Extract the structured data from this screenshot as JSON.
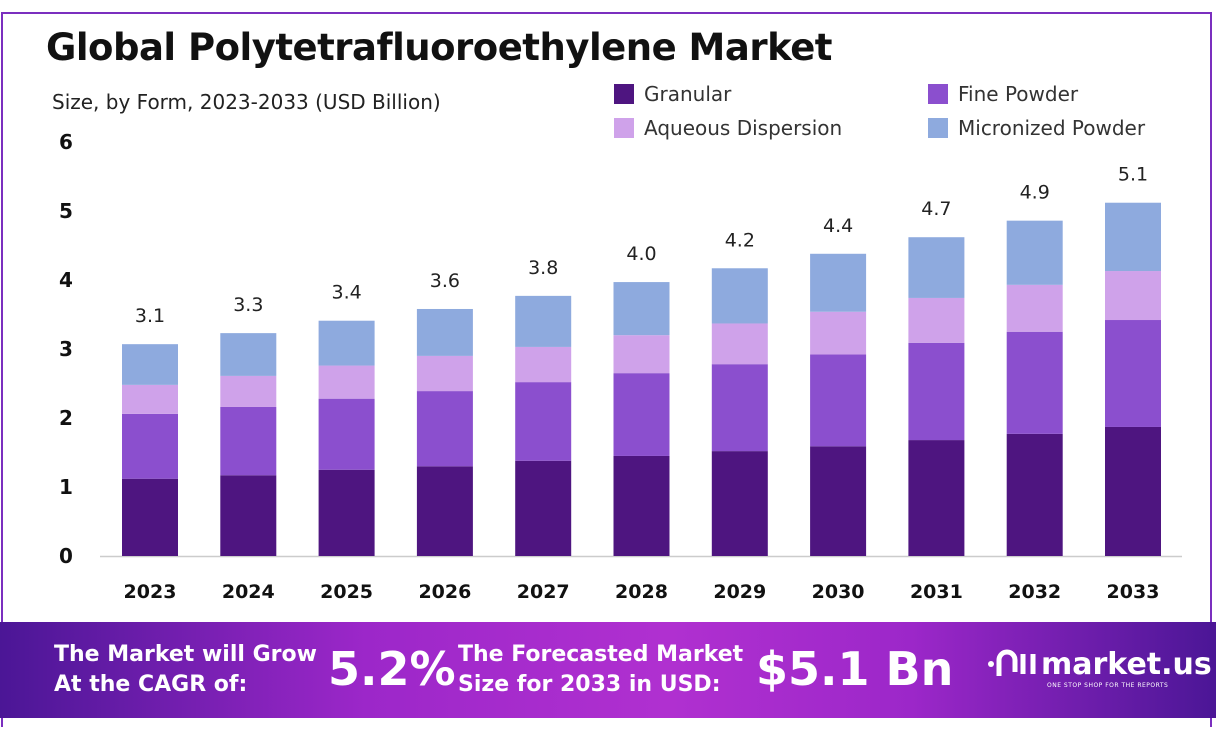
{
  "chart_data": {
    "type": "bar",
    "stacked": true,
    "title": "Global Polytetrafluoroethylene Market",
    "subtitle": "Size, by Form, 2023-2033 (USD Billion)",
    "categories": [
      "2023",
      "2024",
      "2025",
      "2026",
      "2027",
      "2028",
      "2029",
      "2030",
      "2031",
      "2032",
      "2033"
    ],
    "series": [
      {
        "name": "Granular",
        "color": "#4e1580",
        "values": [
          1.12,
          1.17,
          1.25,
          1.3,
          1.38,
          1.45,
          1.52,
          1.59,
          1.68,
          1.77,
          1.87
        ]
      },
      {
        "name": "Fine Powder",
        "color": "#8b4fce",
        "values": [
          0.94,
          0.99,
          1.03,
          1.09,
          1.14,
          1.2,
          1.26,
          1.33,
          1.41,
          1.48,
          1.55
        ]
      },
      {
        "name": "Aqueous Dispersion",
        "color": "#cfa2ea",
        "values": [
          0.42,
          0.45,
          0.48,
          0.51,
          0.51,
          0.55,
          0.59,
          0.62,
          0.65,
          0.68,
          0.71
        ]
      },
      {
        "name": "Micronized Powder",
        "color": "#8eaade",
        "values": [
          0.59,
          0.62,
          0.65,
          0.68,
          0.74,
          0.77,
          0.8,
          0.84,
          0.88,
          0.93,
          0.99
        ]
      }
    ],
    "totals": [
      "3.1",
      "3.3",
      "3.4",
      "3.6",
      "3.8",
      "4.0",
      "4.2",
      "4.4",
      "4.7",
      "4.9",
      "5.1"
    ],
    "yticks": [
      "0",
      "1",
      "2",
      "3",
      "4",
      "5",
      "6"
    ],
    "ylim": [
      0,
      6
    ],
    "grid": false,
    "legend_position": "top-right"
  },
  "footer": {
    "cagr_label_1": "The Market will Grow",
    "cagr_label_2": "At the CAGR of:",
    "cagr_value": "5.2%",
    "forecast_label_1": "The Forecasted Market",
    "forecast_label_2": "Size for 2033 in USD:",
    "forecast_value": "$5.1 Bn",
    "brand": "market.us",
    "brand_tagline": "ONE STOP SHOP FOR THE REPORTS"
  }
}
